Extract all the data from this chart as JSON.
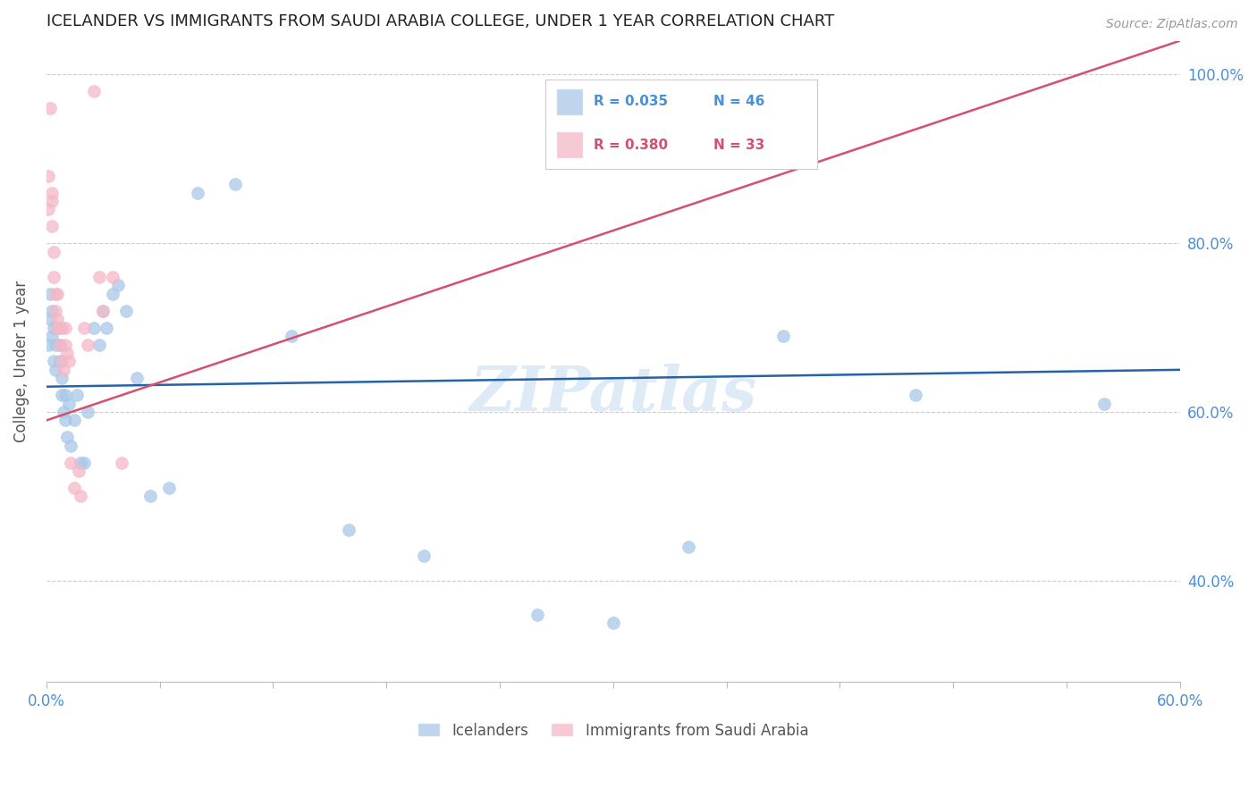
{
  "title": "ICELANDER VS IMMIGRANTS FROM SAUDI ARABIA COLLEGE, UNDER 1 YEAR CORRELATION CHART",
  "source": "Source: ZipAtlas.com",
  "ylabel": "College, Under 1 year",
  "xlim": [
    0.0,
    0.6
  ],
  "ylim": [
    0.28,
    1.04
  ],
  "x_ticks": [
    0.0,
    0.06,
    0.12,
    0.18,
    0.24,
    0.3,
    0.36,
    0.42,
    0.48,
    0.54,
    0.6
  ],
  "x_tick_labels": [
    "0.0%",
    "",
    "",
    "",
    "",
    "",
    "",
    "",
    "",
    "",
    "60.0%"
  ],
  "y_ticks": [
    0.4,
    0.6,
    0.8,
    1.0
  ],
  "y_tick_labels": [
    "40.0%",
    "60.0%",
    "80.0%",
    "100.0%"
  ],
  "blue_color": "#a8c8e8",
  "pink_color": "#f4b8c8",
  "blue_line_color": "#2563a8",
  "pink_line_color": "#d45070",
  "axis_color": "#4a90d9",
  "watermark_color": "#c8ddf0",
  "blue_scatter_x": [
    0.001,
    0.002,
    0.002,
    0.003,
    0.003,
    0.004,
    0.004,
    0.005,
    0.005,
    0.006,
    0.007,
    0.007,
    0.008,
    0.008,
    0.009,
    0.01,
    0.01,
    0.011,
    0.012,
    0.013,
    0.015,
    0.016,
    0.018,
    0.02,
    0.022,
    0.025,
    0.028,
    0.03,
    0.032,
    0.035,
    0.038,
    0.042,
    0.048,
    0.055,
    0.065,
    0.08,
    0.1,
    0.13,
    0.16,
    0.2,
    0.26,
    0.3,
    0.34,
    0.39,
    0.46,
    0.56
  ],
  "blue_scatter_y": [
    0.68,
    0.71,
    0.74,
    0.72,
    0.69,
    0.66,
    0.7,
    0.65,
    0.68,
    0.7,
    0.68,
    0.66,
    0.64,
    0.62,
    0.6,
    0.62,
    0.59,
    0.57,
    0.61,
    0.56,
    0.59,
    0.62,
    0.54,
    0.54,
    0.6,
    0.7,
    0.68,
    0.72,
    0.7,
    0.74,
    0.75,
    0.72,
    0.64,
    0.5,
    0.51,
    0.86,
    0.87,
    0.69,
    0.46,
    0.43,
    0.36,
    0.35,
    0.44,
    0.69,
    0.62,
    0.61
  ],
  "pink_scatter_x": [
    0.001,
    0.001,
    0.002,
    0.003,
    0.003,
    0.003,
    0.004,
    0.004,
    0.005,
    0.005,
    0.006,
    0.006,
    0.006,
    0.007,
    0.007,
    0.008,
    0.008,
    0.009,
    0.01,
    0.01,
    0.011,
    0.012,
    0.013,
    0.015,
    0.017,
    0.018,
    0.02,
    0.022,
    0.025,
    0.028,
    0.03,
    0.035,
    0.04
  ],
  "pink_scatter_y": [
    0.88,
    0.84,
    0.96,
    0.86,
    0.85,
    0.82,
    0.79,
    0.76,
    0.74,
    0.72,
    0.74,
    0.71,
    0.7,
    0.7,
    0.68,
    0.7,
    0.66,
    0.65,
    0.7,
    0.68,
    0.67,
    0.66,
    0.54,
    0.51,
    0.53,
    0.5,
    0.7,
    0.68,
    0.98,
    0.76,
    0.72,
    0.76,
    0.54
  ],
  "blue_line_x": [
    0.0,
    0.6
  ],
  "blue_line_y": [
    0.63,
    0.65
  ],
  "pink_line_x": [
    0.0,
    0.6
  ],
  "pink_line_y": [
    0.59,
    1.04
  ],
  "legend_entries": [
    {
      "color": "#a8c8e8",
      "r": "R = 0.035",
      "n": "N = 46",
      "text_color": "#4a90d9"
    },
    {
      "color": "#f4b8c8",
      "r": "R = 0.380",
      "n": "N = 33",
      "text_color": "#d45070"
    }
  ],
  "bottom_legend": [
    {
      "color": "#a8c8e8",
      "label": "Icelanders"
    },
    {
      "color": "#f4b8c8",
      "label": "Immigrants from Saudi Arabia"
    }
  ]
}
